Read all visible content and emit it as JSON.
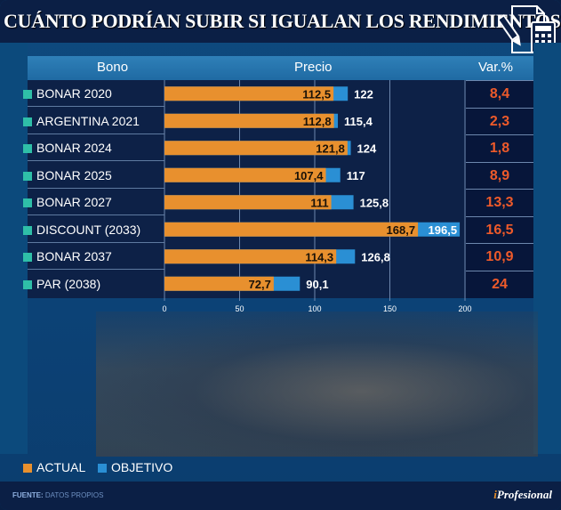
{
  "title": "CUÁNTO PODRÍAN SUBIR SI IGUALAN LOS RENDIMIENTOS",
  "title_icon": "document-pencil-calculator-icon",
  "headers": {
    "bono": "Bono",
    "precio": "Precio",
    "var": "Var.%"
  },
  "colors": {
    "actual": "#e8902e",
    "objetivo": "#2a8fd4",
    "var_text": "#ee5a2a",
    "bullet": "#2fbfa8"
  },
  "chart_data": {
    "type": "bar",
    "orientation": "horizontal",
    "stacked": "overlay",
    "title": "CUÁNTO PODRÍAN SUBIR SI IGUALAN LOS RENDIMIENTOS",
    "xlabel": "Precio",
    "ylabel": "Bono",
    "xlim": [
      0,
      200
    ],
    "xticks": [
      0,
      50,
      100,
      150,
      200
    ],
    "xtick_labels": [
      "0",
      "50",
      "100",
      "150",
      "200"
    ],
    "grid": true,
    "legend_position": "bottom-left",
    "categories": [
      "BONAR 2020",
      "ARGENTINA 2021",
      "BONAR 2024",
      "BONAR 2025",
      "BONAR 2027",
      "DISCOUNT (2033)",
      "BONAR 2037",
      "PAR (2038)"
    ],
    "series": [
      {
        "name": "ACTUAL",
        "values": [
          112.5,
          112.8,
          121.8,
          107.4,
          111,
          168.7,
          114.3,
          72.7
        ],
        "labels": [
          "112,5",
          "112,8",
          "121,8",
          "107,4",
          "111",
          "168,7",
          "114,3",
          "72,7"
        ]
      },
      {
        "name": "OBJETIVO",
        "values": [
          122,
          115.4,
          124,
          117,
          125.8,
          196.5,
          126.8,
          90.1
        ],
        "labels": [
          "122",
          "115,4",
          "124",
          "117",
          "125,8",
          "196,5",
          "126,8",
          "90,1"
        ]
      }
    ],
    "var_pct": [
      8.4,
      2.3,
      1.8,
      8.9,
      13.3,
      16.5,
      10.9,
      24
    ],
    "var_pct_labels": [
      "8,4",
      "2,3",
      "1,8",
      "8,9",
      "13,3",
      "16,5",
      "10,9",
      "24"
    ]
  },
  "legend": [
    {
      "label": "ACTUAL"
    },
    {
      "label": "OBJETIVO"
    }
  ],
  "footer": {
    "source_label": "FUENTE:",
    "source_value": "DATOS PROPIOS",
    "brand_i": "i",
    "brand_rest": "Profesional"
  },
  "photo": "stock-exchange-trading-floor-photo"
}
